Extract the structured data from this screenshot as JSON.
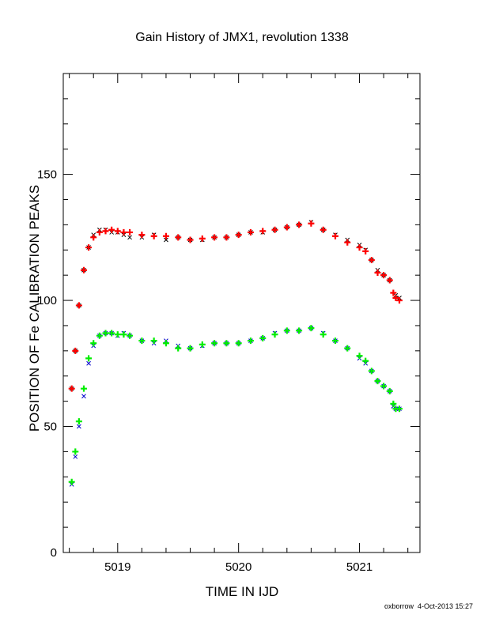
{
  "chart_data": {
    "type": "scatter",
    "title": "Gain History of JMX1, revolution 1338",
    "xlabel": "TIME IN IJD",
    "ylabel": "POSITION OF Fe CALIBRATION PEAKS",
    "xlim": [
      5018.55,
      5021.5
    ],
    "ylim": [
      0,
      190
    ],
    "x_ticks": [
      5019,
      5020,
      5021
    ],
    "x_tick_labels": [
      "5019",
      "5020",
      "5021"
    ],
    "y_ticks": [
      0,
      50,
      100,
      150
    ],
    "y_tick_labels": [
      "0",
      "50",
      "100",
      "150"
    ],
    "grid": false,
    "legend": "none",
    "series": [
      {
        "marker": "x",
        "color": "#000000",
        "points": [
          [
            5018.62,
            65
          ],
          [
            5018.65,
            80
          ],
          [
            5018.68,
            98
          ],
          [
            5018.72,
            112
          ],
          [
            5018.76,
            121
          ],
          [
            5018.8,
            126
          ],
          [
            5018.85,
            128
          ],
          [
            5018.9,
            128
          ],
          [
            5018.95,
            127
          ],
          [
            5019.0,
            127
          ],
          [
            5019.05,
            126
          ],
          [
            5019.1,
            125
          ],
          [
            5019.2,
            125
          ],
          [
            5019.3,
            126
          ],
          [
            5019.4,
            124
          ],
          [
            5019.5,
            125
          ],
          [
            5019.6,
            124
          ],
          [
            5019.7,
            124
          ],
          [
            5019.8,
            125
          ],
          [
            5019.9,
            125
          ],
          [
            5020.0,
            126
          ],
          [
            5020.1,
            127
          ],
          [
            5020.2,
            127
          ],
          [
            5020.3,
            128
          ],
          [
            5020.4,
            129
          ],
          [
            5020.5,
            130
          ],
          [
            5020.6,
            131
          ],
          [
            5020.7,
            128
          ],
          [
            5020.8,
            126
          ],
          [
            5020.9,
            124
          ],
          [
            5021.0,
            122
          ],
          [
            5021.05,
            120
          ],
          [
            5021.1,
            116
          ],
          [
            5021.15,
            112
          ],
          [
            5021.2,
            110
          ],
          [
            5021.25,
            108
          ],
          [
            5021.3,
            102
          ],
          [
            5021.33,
            101
          ]
        ]
      },
      {
        "marker": "+",
        "color": "#ff0000",
        "points": [
          [
            5018.62,
            65
          ],
          [
            5018.65,
            80
          ],
          [
            5018.68,
            98
          ],
          [
            5018.72,
            112
          ],
          [
            5018.76,
            121
          ],
          [
            5018.8,
            125
          ],
          [
            5018.85,
            127
          ],
          [
            5018.9,
            127.5
          ],
          [
            5018.95,
            128
          ],
          [
            5019.0,
            127.5
          ],
          [
            5019.05,
            127
          ],
          [
            5019.1,
            127
          ],
          [
            5019.2,
            126
          ],
          [
            5019.3,
            125.5
          ],
          [
            5019.4,
            125.5
          ],
          [
            5019.5,
            125
          ],
          [
            5019.6,
            124
          ],
          [
            5019.7,
            124.5
          ],
          [
            5019.8,
            125
          ],
          [
            5019.9,
            125
          ],
          [
            5020.0,
            126
          ],
          [
            5020.1,
            127
          ],
          [
            5020.2,
            127.5
          ],
          [
            5020.3,
            128
          ],
          [
            5020.4,
            129
          ],
          [
            5020.5,
            130
          ],
          [
            5020.6,
            130.5
          ],
          [
            5020.7,
            128
          ],
          [
            5020.8,
            125.5
          ],
          [
            5020.9,
            123
          ],
          [
            5021.0,
            121
          ],
          [
            5021.05,
            119.5
          ],
          [
            5021.1,
            116
          ],
          [
            5021.15,
            111
          ],
          [
            5021.2,
            110
          ],
          [
            5021.25,
            108
          ],
          [
            5021.28,
            103
          ],
          [
            5021.3,
            101
          ],
          [
            5021.33,
            100
          ]
        ]
      },
      {
        "marker": "x",
        "color": "#0000cc",
        "points": [
          [
            5018.62,
            27
          ],
          [
            5018.65,
            38
          ],
          [
            5018.68,
            50
          ],
          [
            5018.72,
            62
          ],
          [
            5018.76,
            75
          ],
          [
            5018.8,
            82
          ],
          [
            5018.85,
            86
          ],
          [
            5018.9,
            87
          ],
          [
            5018.95,
            87
          ],
          [
            5019.0,
            86
          ],
          [
            5019.05,
            87
          ],
          [
            5019.1,
            86
          ],
          [
            5019.2,
            84
          ],
          [
            5019.3,
            83
          ],
          [
            5019.4,
            84
          ],
          [
            5019.5,
            82
          ],
          [
            5019.6,
            81
          ],
          [
            5019.7,
            82
          ],
          [
            5019.8,
            83
          ],
          [
            5019.9,
            83
          ],
          [
            5020.0,
            83
          ],
          [
            5020.1,
            84
          ],
          [
            5020.2,
            85
          ],
          [
            5020.3,
            87
          ],
          [
            5020.4,
            88
          ],
          [
            5020.5,
            88
          ],
          [
            5020.6,
            89
          ],
          [
            5020.7,
            87
          ],
          [
            5020.8,
            84
          ],
          [
            5020.9,
            81
          ],
          [
            5021.0,
            77
          ],
          [
            5021.05,
            75
          ],
          [
            5021.1,
            72
          ],
          [
            5021.15,
            68
          ],
          [
            5021.2,
            66
          ],
          [
            5021.25,
            64
          ],
          [
            5021.28,
            58
          ],
          [
            5021.3,
            57
          ],
          [
            5021.33,
            57
          ]
        ]
      },
      {
        "marker": "+",
        "color": "#00ee00",
        "points": [
          [
            5018.62,
            28
          ],
          [
            5018.65,
            40
          ],
          [
            5018.68,
            52
          ],
          [
            5018.72,
            65
          ],
          [
            5018.76,
            77
          ],
          [
            5018.8,
            83
          ],
          [
            5018.85,
            86
          ],
          [
            5018.9,
            87
          ],
          [
            5018.95,
            87
          ],
          [
            5019.0,
            86.5
          ],
          [
            5019.05,
            86.5
          ],
          [
            5019.1,
            86
          ],
          [
            5019.2,
            84
          ],
          [
            5019.3,
            84
          ],
          [
            5019.4,
            83
          ],
          [
            5019.5,
            81
          ],
          [
            5019.6,
            81
          ],
          [
            5019.7,
            82.5
          ],
          [
            5019.8,
            83
          ],
          [
            5019.9,
            83
          ],
          [
            5020.0,
            83
          ],
          [
            5020.1,
            84
          ],
          [
            5020.2,
            85
          ],
          [
            5020.3,
            86.5
          ],
          [
            5020.4,
            88
          ],
          [
            5020.5,
            88
          ],
          [
            5020.6,
            89
          ],
          [
            5020.7,
            86.5
          ],
          [
            5020.8,
            84
          ],
          [
            5020.9,
            81
          ],
          [
            5021.0,
            78
          ],
          [
            5021.05,
            76
          ],
          [
            5021.1,
            72
          ],
          [
            5021.15,
            68
          ],
          [
            5021.2,
            66
          ],
          [
            5021.25,
            64
          ],
          [
            5021.28,
            59
          ],
          [
            5021.3,
            57
          ],
          [
            5021.33,
            57
          ]
        ]
      }
    ]
  },
  "footer": {
    "author": "oxborrow",
    "timestamp": "4-Oct-2013 15:27"
  }
}
